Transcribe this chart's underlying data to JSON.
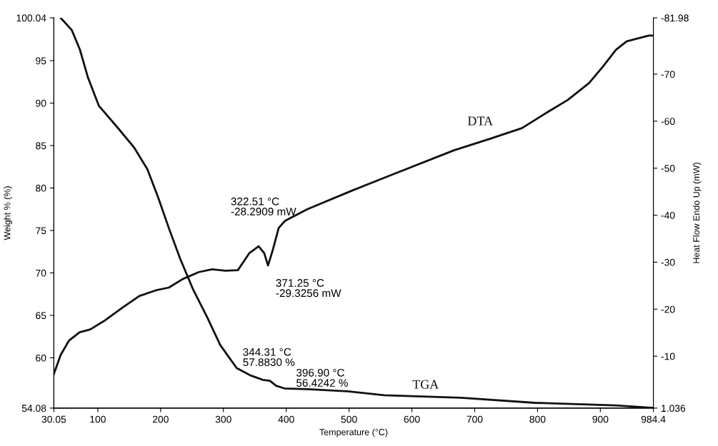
{
  "chart_data": {
    "type": "line",
    "xlabel": "Temperature (°C)",
    "ylabel": "Weight % (%)",
    "y2label": "Heat Flow Endo Up (mW)",
    "xlim": [
      30.05,
      984.4
    ],
    "xticks": [
      30.05,
      100,
      200,
      300,
      400,
      500,
      600,
      700,
      800,
      900,
      984.4
    ],
    "ylim": [
      54.08,
      100.04
    ],
    "yticks": [
      54.08,
      60,
      65,
      70,
      75,
      80,
      85,
      90,
      95,
      100.04
    ],
    "y2lim": [
      1.036,
      -81.98
    ],
    "y2ticks": [
      1.036,
      -10,
      -20,
      -30,
      -40,
      -50,
      -60,
      -70,
      -81.98
    ],
    "grid": false,
    "legend": false,
    "marker": "none",
    "line_style": "solid",
    "series": [
      {
        "name": "TGA",
        "color": "#111111",
        "x": [
          41.4,
          58.6,
          71.5,
          84.4,
          101.6,
          131.7,
          157.5,
          179,
          196,
          213,
          231,
          252,
          274,
          295,
          321,
          344,
          363,
          374,
          384,
          397,
          434,
          498,
          556,
          678,
          796,
          925,
          984.4
        ],
        "values": [
          100.0,
          98.6,
          96.3,
          93.0,
          89.7,
          87.1,
          84.8,
          82.2,
          78.9,
          75.3,
          71.7,
          68.0,
          64.8,
          61.5,
          58.8,
          57.9,
          57.4,
          57.3,
          56.7,
          56.4,
          56.3,
          56.05,
          55.6,
          55.3,
          54.7,
          54.4,
          54.1
        ]
      },
      {
        "name": "DTA",
        "color": "#111111",
        "axis": "y2",
        "x": [
          30.05,
          41,
          54,
          71,
          88,
          110,
          140,
          166,
          192,
          213,
          235,
          261,
          282,
          303,
          323,
          341,
          356,
          365,
          371,
          379,
          388,
          398,
          434,
          506,
          570,
          667,
          723,
          775,
          818,
          848,
          882,
          904,
          925,
          942,
          977,
          984.4
        ],
        "values": [
          -6.2,
          -10.3,
          -13.3,
          -15.1,
          -15.7,
          -17.5,
          -20.4,
          -22.8,
          -24.0,
          -24.6,
          -26.4,
          -27.9,
          -28.5,
          -28.2,
          -28.3,
          -31.9,
          -33.4,
          -31.9,
          -29.3,
          -32.8,
          -37.3,
          -38.8,
          -41.3,
          -45.3,
          -48.7,
          -53.8,
          -56.2,
          -58.5,
          -62.1,
          -64.5,
          -68.1,
          -71.6,
          -75.2,
          -77.0,
          -78.2,
          -78.2
        ]
      }
    ],
    "annotations": [
      "322.51 °C\n-28.2909 mW",
      "371.25 °C\n-29.3256 mW",
      "344.31 °C\n57.8830 %",
      "396.90 °C\n56.4242 %"
    ]
  }
}
